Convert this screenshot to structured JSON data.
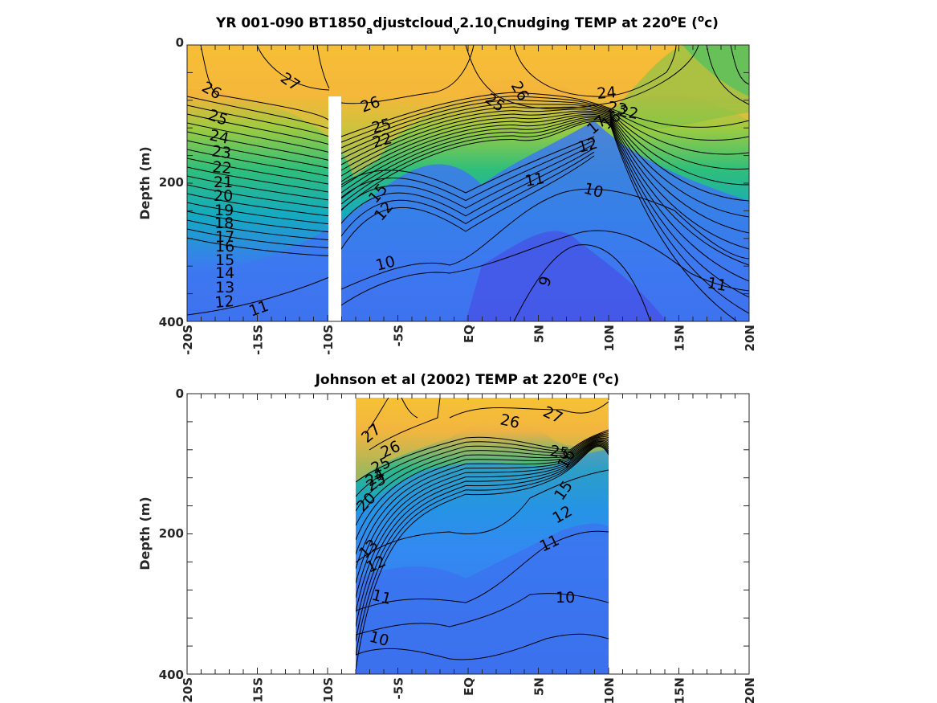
{
  "chart_data": [
    {
      "type": "contour",
      "title_main": "YR 001-090 BT1850",
      "title_sub1": "a",
      "title_mid": "djustcloud",
      "title_sub2": "v",
      "title_mid2": "2.10",
      "title_sub3": "I",
      "title_end": "Cnudging TEMP at 220",
      "title_deg": "o",
      "title_unit_a": "E (",
      "title_unit_deg": "o",
      "title_unit_b": "c)",
      "ylabel": "Depth (m)",
      "xlim": [
        -20,
        20
      ],
      "ylim": [
        0,
        400
      ],
      "yticks": [
        "0",
        "200",
        "400"
      ],
      "xticks": [
        "-20S",
        "-15S",
        "-10S",
        "-5S",
        "EQ",
        "5N",
        "10N",
        "15N",
        "20N"
      ],
      "contour_labels": [
        "27",
        "26",
        "26",
        "25",
        "26",
        "25",
        "24",
        "23",
        "22",
        "21",
        "20",
        "19",
        "18",
        "17",
        "16",
        "15",
        "14",
        "13",
        "12",
        "11",
        "25",
        "22",
        "15",
        "12",
        "11",
        "10",
        "10",
        "9",
        "11",
        "24",
        "23",
        "22",
        "17",
        "16",
        "12"
      ]
    },
    {
      "type": "contour",
      "title_main": "Johnson et al (2002) TEMP at 220",
      "title_deg": "o",
      "title_unit_a": "E (",
      "title_unit_deg": "o",
      "title_unit_b": "c)",
      "ylabel": "Depth (m)",
      "xlim": [
        -20,
        20
      ],
      "ylim": [
        0,
        400
      ],
      "data_xrange": [
        -8,
        10
      ],
      "yticks": [
        "0",
        "200",
        "400"
      ],
      "xticks": [
        "-20S",
        "-15S",
        "-10S",
        "-5S",
        "EQ",
        "5N",
        "10N",
        "15N",
        "20N"
      ],
      "contour_labels": [
        "27",
        "26",
        "27",
        "26",
        "25",
        "24",
        "23",
        "20",
        "13",
        "12",
        "11",
        "10",
        "10",
        "25",
        "16",
        "15",
        "12",
        "11"
      ]
    }
  ]
}
